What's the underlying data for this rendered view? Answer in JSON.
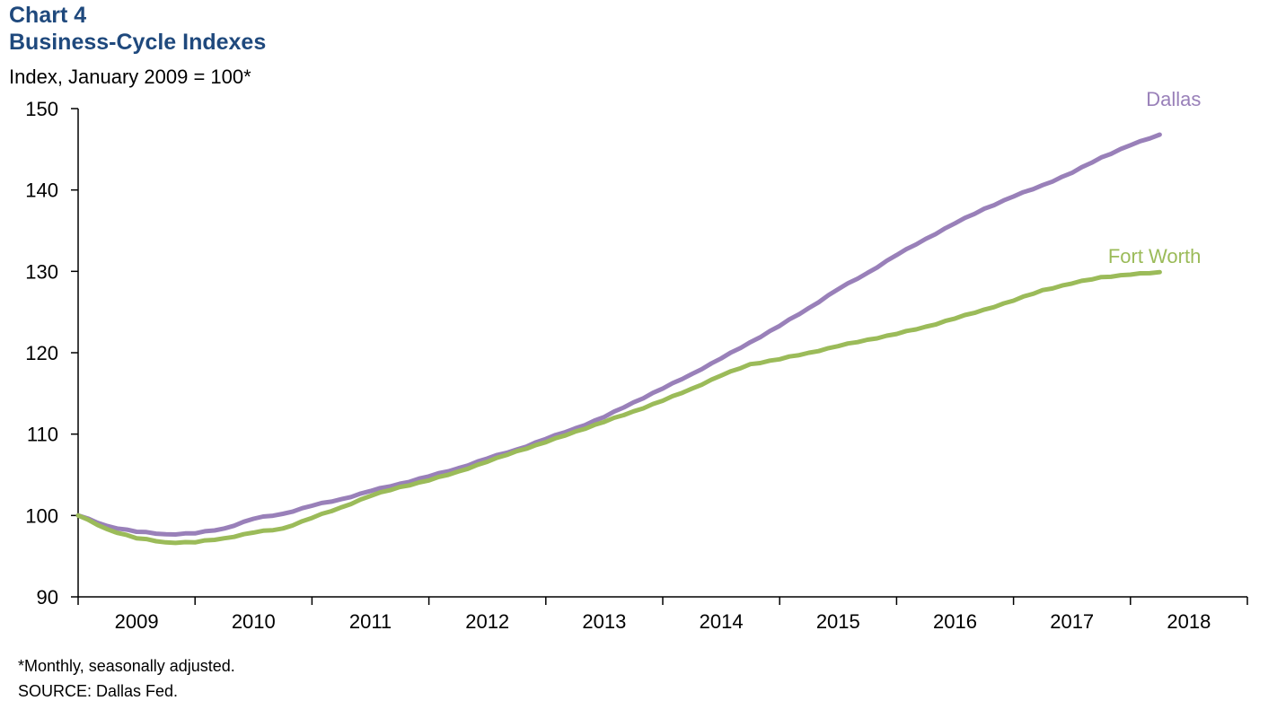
{
  "header": {
    "title_line1": "Chart 4",
    "title_line2": "Business-Cycle Indexes",
    "unit_label": "Index, January 2009 = 100*"
  },
  "footer": {
    "footnote": "*Monthly, seasonally adjusted.",
    "source": "SOURCE: Dallas Fed."
  },
  "colors": {
    "title": "#1f497d",
    "dallas": "#9980b9",
    "fort_worth": "#9bbb59",
    "axis": "#000000"
  },
  "chart_data": {
    "type": "line",
    "title": "Business-Cycle Indexes",
    "xlabel": "",
    "ylabel": "Index, January 2009 = 100*",
    "ylim": [
      90,
      150
    ],
    "yticks": [
      90,
      100,
      110,
      120,
      130,
      140,
      150
    ],
    "xlim": [
      "2009-01",
      "2019-01"
    ],
    "xtick_labels": [
      "2009",
      "2010",
      "2011",
      "2012",
      "2013",
      "2014",
      "2015",
      "2016",
      "2017",
      "2018"
    ],
    "grid": false,
    "legend": "series labels at line ends",
    "series": [
      {
        "name": "Dallas",
        "color": "#9980b9",
        "anchors": [
          [
            "2009-01",
            100.0
          ],
          [
            "2009-04",
            98.7
          ],
          [
            "2009-07",
            98.0
          ],
          [
            "2009-10",
            97.7
          ],
          [
            "2010-01",
            97.8
          ],
          [
            "2010-04",
            98.4
          ],
          [
            "2010-07",
            99.6
          ],
          [
            "2010-10",
            100.2
          ],
          [
            "2011-01",
            101.2
          ],
          [
            "2011-04",
            102.0
          ],
          [
            "2011-07",
            103.0
          ],
          [
            "2011-10",
            103.9
          ],
          [
            "2012-01",
            104.8
          ],
          [
            "2012-04",
            105.8
          ],
          [
            "2012-07",
            107.0
          ],
          [
            "2012-10",
            108.1
          ],
          [
            "2013-01",
            109.4
          ],
          [
            "2013-04",
            110.7
          ],
          [
            "2013-07",
            112.1
          ],
          [
            "2013-10",
            113.9
          ],
          [
            "2014-01",
            115.6
          ],
          [
            "2014-04",
            117.4
          ],
          [
            "2014-07",
            119.3
          ],
          [
            "2014-10",
            121.3
          ],
          [
            "2015-01",
            123.3
          ],
          [
            "2015-04",
            125.5
          ],
          [
            "2015-07",
            127.8
          ],
          [
            "2015-10",
            129.8
          ],
          [
            "2016-01",
            132.0
          ],
          [
            "2016-04",
            134.0
          ],
          [
            "2016-07",
            135.9
          ],
          [
            "2016-10",
            137.7
          ],
          [
            "2017-01",
            139.2
          ],
          [
            "2017-04",
            140.6
          ],
          [
            "2017-07",
            142.1
          ],
          [
            "2017-10",
            144.0
          ],
          [
            "2018-01",
            145.5
          ],
          [
            "2018-04",
            146.8
          ]
        ]
      },
      {
        "name": "Fort Worth",
        "color": "#9bbb59",
        "anchors": [
          [
            "2009-01",
            100.0
          ],
          [
            "2009-04",
            98.3
          ],
          [
            "2009-07",
            97.2
          ],
          [
            "2009-10",
            96.7
          ],
          [
            "2010-01",
            96.7
          ],
          [
            "2010-04",
            97.2
          ],
          [
            "2010-07",
            97.9
          ],
          [
            "2010-10",
            98.4
          ],
          [
            "2011-01",
            99.7
          ],
          [
            "2011-04",
            101.0
          ],
          [
            "2011-07",
            102.4
          ],
          [
            "2011-10",
            103.5
          ],
          [
            "2012-01",
            104.3
          ],
          [
            "2012-04",
            105.4
          ],
          [
            "2012-07",
            106.6
          ],
          [
            "2012-10",
            107.9
          ],
          [
            "2013-01",
            109.0
          ],
          [
            "2013-04",
            110.3
          ],
          [
            "2013-07",
            111.5
          ],
          [
            "2013-10",
            112.8
          ],
          [
            "2014-01",
            114.1
          ],
          [
            "2014-04",
            115.6
          ],
          [
            "2014-07",
            117.2
          ],
          [
            "2014-10",
            118.6
          ],
          [
            "2015-01",
            119.2
          ],
          [
            "2015-04",
            120.0
          ],
          [
            "2015-07",
            120.8
          ],
          [
            "2015-10",
            121.6
          ],
          [
            "2016-01",
            122.3
          ],
          [
            "2016-04",
            123.2
          ],
          [
            "2016-07",
            124.2
          ],
          [
            "2016-10",
            125.3
          ],
          [
            "2017-01",
            126.4
          ],
          [
            "2017-04",
            127.7
          ],
          [
            "2017-07",
            128.5
          ],
          [
            "2017-10",
            129.3
          ],
          [
            "2018-01",
            129.6
          ],
          [
            "2018-04",
            129.9
          ]
        ]
      }
    ]
  }
}
